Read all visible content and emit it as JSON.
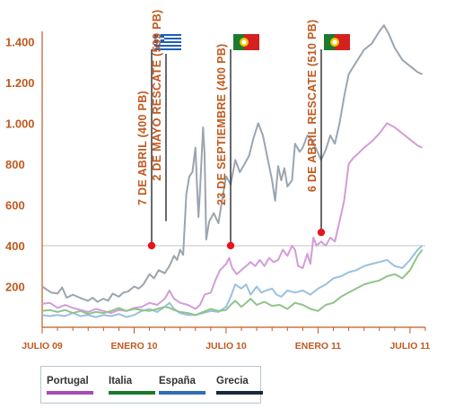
{
  "chart_data": {
    "type": "line",
    "title": "",
    "xlabel": "",
    "ylabel": "",
    "x_tick_labels": [
      "JULIO 09",
      "ENERO 10",
      "JULIO 10",
      "ENERO 11",
      "JULIO 11"
    ],
    "y_tick_labels": [
      "200",
      "400",
      "600",
      "800",
      "1.000",
      "1.200",
      "1.400"
    ],
    "ylim": [
      0,
      1450
    ],
    "x_unit": "months since JULIO 09",
    "xlim": [
      0,
      25
    ],
    "reference_line": {
      "y": 400
    },
    "series": [
      {
        "name": "Grecia",
        "color": "#9aa5b0",
        "points": [
          [
            0,
            200
          ],
          [
            0.3,
            185
          ],
          [
            0.6,
            170
          ],
          [
            1,
            165
          ],
          [
            1.3,
            195
          ],
          [
            1.6,
            145
          ],
          [
            2,
            160
          ],
          [
            2.3,
            150
          ],
          [
            2.6,
            140
          ],
          [
            3,
            130
          ],
          [
            3.3,
            145
          ],
          [
            3.6,
            125
          ],
          [
            4,
            140
          ],
          [
            4.3,
            130
          ],
          [
            4.6,
            165
          ],
          [
            5,
            150
          ],
          [
            5.3,
            170
          ],
          [
            5.6,
            175
          ],
          [
            6,
            200
          ],
          [
            6.3,
            190
          ],
          [
            6.6,
            210
          ],
          [
            7,
            260
          ],
          [
            7.3,
            240
          ],
          [
            7.6,
            280
          ],
          [
            8,
            265
          ],
          [
            8.3,
            300
          ],
          [
            8.6,
            350
          ],
          [
            8.8,
            330
          ],
          [
            9,
            380
          ],
          [
            9.2,
            355
          ],
          [
            9.4,
            650
          ],
          [
            9.6,
            740
          ],
          [
            9.8,
            760
          ],
          [
            10,
            880
          ],
          [
            10.1,
            700
          ],
          [
            10.2,
            540
          ],
          [
            10.3,
            670
          ],
          [
            10.5,
            980
          ],
          [
            10.6,
            850
          ],
          [
            10.7,
            430
          ],
          [
            10.9,
            520
          ],
          [
            11.2,
            560
          ],
          [
            11.5,
            510
          ],
          [
            11.8,
            650
          ],
          [
            12,
            740
          ],
          [
            12.3,
            700
          ],
          [
            12.6,
            820
          ],
          [
            12.9,
            760
          ],
          [
            13.2,
            800
          ],
          [
            13.5,
            840
          ],
          [
            13.8,
            930
          ],
          [
            14.1,
            1000
          ],
          [
            14.4,
            940
          ],
          [
            14.7,
            830
          ],
          [
            15,
            720
          ],
          [
            15.2,
            620
          ],
          [
            15.4,
            790
          ],
          [
            15.6,
            720
          ],
          [
            15.8,
            780
          ],
          [
            16,
            690
          ],
          [
            16.3,
            720
          ],
          [
            16.5,
            900
          ],
          [
            16.8,
            860
          ],
          [
            17,
            880
          ],
          [
            17.3,
            940
          ],
          [
            17.6,
            920
          ],
          [
            17.9,
            870
          ],
          [
            18.2,
            820
          ],
          [
            18.5,
            870
          ],
          [
            18.8,
            940
          ],
          [
            19.1,
            900
          ],
          [
            19.4,
            1000
          ],
          [
            19.7,
            1130
          ],
          [
            20,
            1240
          ],
          [
            20.5,
            1300
          ],
          [
            21,
            1360
          ],
          [
            21.5,
            1390
          ],
          [
            22,
            1450
          ],
          [
            22.3,
            1480
          ],
          [
            22.6,
            1440
          ],
          [
            23,
            1370
          ],
          [
            23.5,
            1310
          ],
          [
            24,
            1280
          ],
          [
            24.5,
            1250
          ],
          [
            24.8,
            1240
          ]
        ]
      },
      {
        "name": "Portugal",
        "color": "#d39cd8",
        "points": [
          [
            0,
            115
          ],
          [
            0.5,
            120
          ],
          [
            1,
            95
          ],
          [
            1.5,
            110
          ],
          [
            2,
            95
          ],
          [
            2.5,
            85
          ],
          [
            3,
            75
          ],
          [
            3.5,
            90
          ],
          [
            4,
            80
          ],
          [
            4.5,
            70
          ],
          [
            5,
            85
          ],
          [
            5.5,
            80
          ],
          [
            6,
            95
          ],
          [
            6.5,
            100
          ],
          [
            7,
            120
          ],
          [
            7.5,
            110
          ],
          [
            8,
            140
          ],
          [
            8.3,
            180
          ],
          [
            8.6,
            140
          ],
          [
            9,
            120
          ],
          [
            9.5,
            110
          ],
          [
            10,
            90
          ],
          [
            10.3,
            110
          ],
          [
            10.6,
            160
          ],
          [
            11,
            170
          ],
          [
            11.3,
            230
          ],
          [
            11.6,
            280
          ],
          [
            12,
            310
          ],
          [
            12.2,
            340
          ],
          [
            12.4,
            290
          ],
          [
            12.7,
            260
          ],
          [
            13,
            280
          ],
          [
            13.3,
            300
          ],
          [
            13.6,
            320
          ],
          [
            13.9,
            300
          ],
          [
            14.2,
            330
          ],
          [
            14.5,
            300
          ],
          [
            14.8,
            340
          ],
          [
            15.1,
            320
          ],
          [
            15.4,
            330
          ],
          [
            15.7,
            380
          ],
          [
            16,
            350
          ],
          [
            16.3,
            400
          ],
          [
            16.5,
            380
          ],
          [
            16.7,
            300
          ],
          [
            17,
            290
          ],
          [
            17.3,
            360
          ],
          [
            17.5,
            310
          ],
          [
            17.7,
            440
          ],
          [
            17.9,
            400
          ],
          [
            18.2,
            420
          ],
          [
            18.5,
            400
          ],
          [
            18.8,
            440
          ],
          [
            19.1,
            420
          ],
          [
            19.4,
            520
          ],
          [
            19.7,
            620
          ],
          [
            20,
            800
          ],
          [
            20.3,
            830
          ],
          [
            20.6,
            850
          ],
          [
            21,
            880
          ],
          [
            21.5,
            910
          ],
          [
            22,
            950
          ],
          [
            22.5,
            1000
          ],
          [
            23,
            980
          ],
          [
            23.5,
            950
          ],
          [
            24,
            920
          ],
          [
            24.5,
            890
          ],
          [
            24.8,
            880
          ]
        ]
      },
      {
        "name": "España",
        "color": "#9ac0de",
        "points": [
          [
            0,
            60
          ],
          [
            0.5,
            55
          ],
          [
            1,
            60
          ],
          [
            1.5,
            55
          ],
          [
            2,
            70
          ],
          [
            2.5,
            55
          ],
          [
            3,
            60
          ],
          [
            3.5,
            50
          ],
          [
            4,
            60
          ],
          [
            4.5,
            55
          ],
          [
            5,
            65
          ],
          [
            5.5,
            50
          ],
          [
            6,
            60
          ],
          [
            6.5,
            80
          ],
          [
            7,
            90
          ],
          [
            7.5,
            75
          ],
          [
            8,
            100
          ],
          [
            8.3,
            120
          ],
          [
            8.6,
            90
          ],
          [
            9,
            70
          ],
          [
            9.5,
            60
          ],
          [
            10,
            60
          ],
          [
            10.5,
            70
          ],
          [
            11,
            80
          ],
          [
            11.5,
            75
          ],
          [
            12,
            100
          ],
          [
            12.3,
            150
          ],
          [
            12.6,
            210
          ],
          [
            13,
            190
          ],
          [
            13.3,
            210
          ],
          [
            13.6,
            160
          ],
          [
            14,
            200
          ],
          [
            14.3,
            170
          ],
          [
            14.6,
            180
          ],
          [
            15,
            190
          ],
          [
            15.3,
            160
          ],
          [
            15.6,
            150
          ],
          [
            16,
            180
          ],
          [
            16.5,
            170
          ],
          [
            17,
            180
          ],
          [
            17.5,
            160
          ],
          [
            18,
            190
          ],
          [
            18.5,
            210
          ],
          [
            19,
            240
          ],
          [
            19.5,
            250
          ],
          [
            20,
            270
          ],
          [
            20.5,
            280
          ],
          [
            21,
            300
          ],
          [
            21.5,
            310
          ],
          [
            22,
            320
          ],
          [
            22.5,
            330
          ],
          [
            23,
            300
          ],
          [
            23.5,
            290
          ],
          [
            24,
            330
          ],
          [
            24.5,
            380
          ],
          [
            24.8,
            400
          ]
        ]
      },
      {
        "name": "Italia",
        "color": "#8fc48a",
        "points": [
          [
            0,
            80
          ],
          [
            0.5,
            85
          ],
          [
            1,
            75
          ],
          [
            1.5,
            85
          ],
          [
            2,
            70
          ],
          [
            2.5,
            80
          ],
          [
            3,
            65
          ],
          [
            3.5,
            75
          ],
          [
            4,
            70
          ],
          [
            4.5,
            80
          ],
          [
            5,
            95
          ],
          [
            5.5,
            80
          ],
          [
            6,
            90
          ],
          [
            6.5,
            85
          ],
          [
            7,
            80
          ],
          [
            7.5,
            90
          ],
          [
            8,
            100
          ],
          [
            8.3,
            95
          ],
          [
            8.6,
            85
          ],
          [
            9,
            75
          ],
          [
            9.5,
            70
          ],
          [
            10,
            60
          ],
          [
            10.5,
            75
          ],
          [
            11,
            90
          ],
          [
            11.5,
            80
          ],
          [
            12,
            85
          ],
          [
            12.3,
            110
          ],
          [
            12.6,
            130
          ],
          [
            13,
            100
          ],
          [
            13.3,
            120
          ],
          [
            13.6,
            140
          ],
          [
            14,
            110
          ],
          [
            14.5,
            125
          ],
          [
            15,
            105
          ],
          [
            15.5,
            110
          ],
          [
            16,
            90
          ],
          [
            16.5,
            120
          ],
          [
            17,
            110
          ],
          [
            17.5,
            90
          ],
          [
            18,
            80
          ],
          [
            18.5,
            110
          ],
          [
            19,
            120
          ],
          [
            19.5,
            150
          ],
          [
            20,
            170
          ],
          [
            20.5,
            190
          ],
          [
            21,
            210
          ],
          [
            21.5,
            220
          ],
          [
            22,
            230
          ],
          [
            22.5,
            250
          ],
          [
            23,
            260
          ],
          [
            23.5,
            240
          ],
          [
            24,
            280
          ],
          [
            24.5,
            350
          ],
          [
            24.8,
            380
          ]
        ]
      }
    ],
    "annotations": [
      {
        "label": "7 DE ABRIL (400 PB)",
        "x": 9.2,
        "y": 400,
        "flag": "Grecia"
      },
      {
        "label": "2 DE MAYO RESCATE (599 PB)",
        "x": 10.2,
        "y": 520,
        "flag": ""
      },
      {
        "label": "23 DE SEPTIEMBRE (400 PB)",
        "x": 14.5,
        "y": 400,
        "flag": "Portugal"
      },
      {
        "label": "6 DE ABRIL RESCATE (510 PB)",
        "x": 20.3,
        "y": 465,
        "flag": "Portugal"
      }
    ]
  },
  "legend": [
    {
      "name": "Portugal",
      "color": "#a84ab8"
    },
    {
      "name": "Italia",
      "color": "#1b7a29"
    },
    {
      "name": "España",
      "color": "#2f6db5"
    },
    {
      "name": "Grecia",
      "color": "#17283a"
    }
  ]
}
